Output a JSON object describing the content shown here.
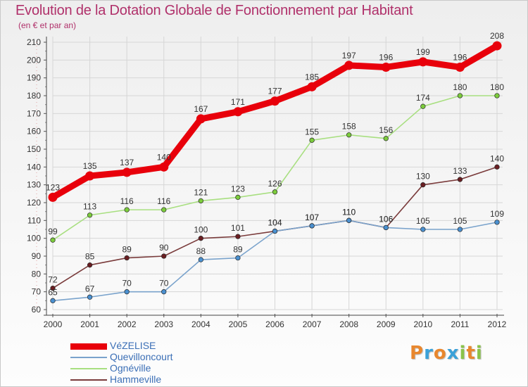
{
  "header": {
    "title": "Evolution de la Dotation Globale de Fonctionnement par Habitant",
    "subtitle": "(en € et par an)"
  },
  "brand": {
    "letters": [
      "P",
      "r",
      "o",
      "x",
      "i",
      "t",
      "i"
    ],
    "colors": [
      "#e8872e",
      "#3ba1d8",
      "#e8872e",
      "#3ba1d8",
      "#8bc34a",
      "#e8872e",
      "#8bc34a"
    ]
  },
  "chart_data": {
    "type": "line",
    "x": [
      2000,
      2001,
      2002,
      2003,
      2004,
      2005,
      2006,
      2007,
      2008,
      2009,
      2010,
      2011,
      2012
    ],
    "ylim": [
      60,
      210
    ],
    "yticks": [
      60,
      70,
      80,
      90,
      100,
      110,
      120,
      130,
      140,
      150,
      160,
      170,
      180,
      190,
      200,
      210
    ],
    "grid": true,
    "legend_position": "bottom-left",
    "series": [
      {
        "name": "VéZELISE",
        "color": "#e8000b",
        "marker_color": "#e8000b",
        "values": [
          123,
          135,
          137,
          140,
          167,
          171,
          177,
          185,
          197,
          196,
          199,
          196,
          208
        ]
      },
      {
        "name": "Quevilloncourt",
        "color": "#7aa3cc",
        "marker_color": "#4a90d0",
        "values": [
          65,
          67,
          70,
          70,
          88,
          89,
          104,
          107,
          110,
          106,
          105,
          105,
          109
        ]
      },
      {
        "name": "Ognéville",
        "color": "#a8df80",
        "marker_color": "#7ccc3c",
        "values": [
          99,
          113,
          116,
          116,
          121,
          123,
          126,
          155,
          158,
          156,
          174,
          180,
          180
        ]
      },
      {
        "name": "Hammeville",
        "color": "#7a3b3b",
        "marker_color": "#6a1e22",
        "values": [
          72,
          85,
          89,
          90,
          100,
          101,
          104,
          107,
          110,
          106,
          130,
          133,
          140
        ]
      }
    ]
  }
}
